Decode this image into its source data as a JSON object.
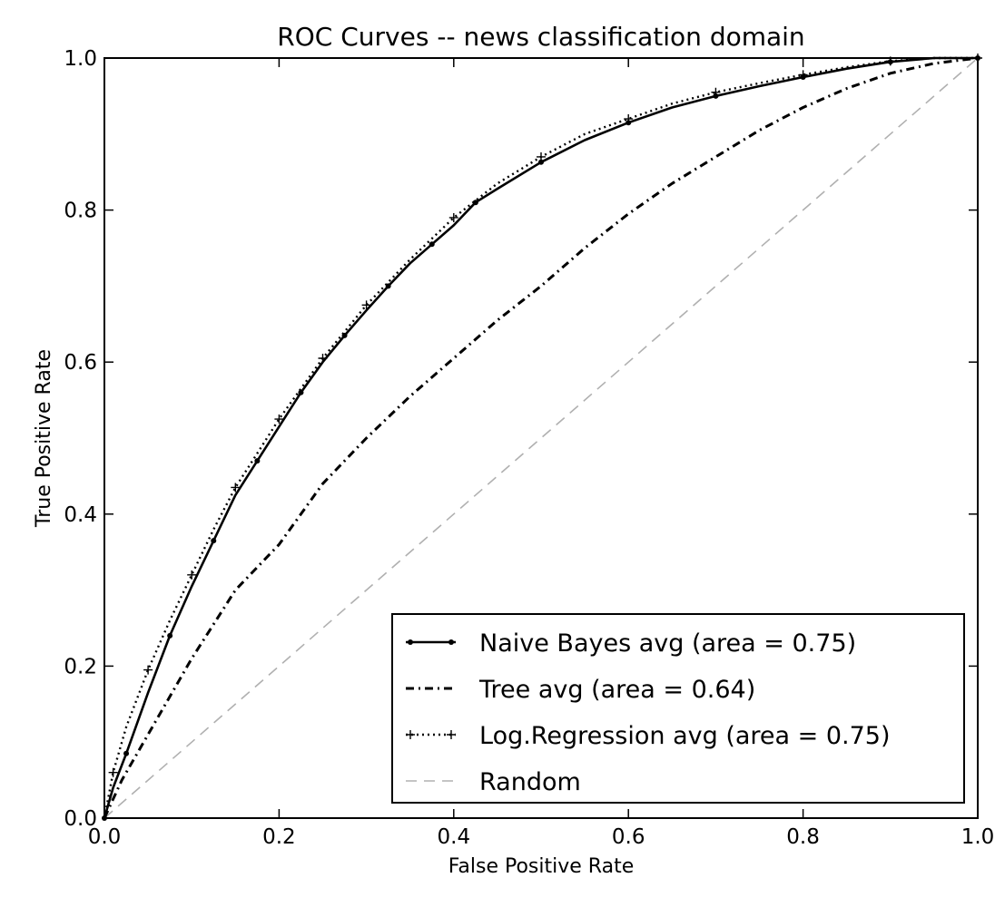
{
  "chart_data": {
    "type": "line",
    "title": "ROC Curves -- news classification domain",
    "xlabel": "False Positive Rate",
    "ylabel": "True Positive Rate",
    "xlim": [
      0.0,
      1.0
    ],
    "ylim": [
      0.0,
      1.0
    ],
    "x_ticks": [
      "0.0",
      "0.2",
      "0.4",
      "0.6",
      "0.8",
      "1.0"
    ],
    "y_ticks": [
      "0.0",
      "0.2",
      "0.4",
      "0.6",
      "0.8",
      "1.0"
    ],
    "grid": false,
    "legend_position": "lower-right",
    "series": [
      {
        "name": "Naive Bayes avg (area = 0.75)",
        "style": "solid-dot-markers",
        "color": "#000000",
        "x": [
          0,
          0.01,
          0.025,
          0.05,
          0.075,
          0.1,
          0.125,
          0.15,
          0.175,
          0.2,
          0.225,
          0.25,
          0.275,
          0.3,
          0.325,
          0.35,
          0.375,
          0.4,
          0.425,
          0.45,
          0.5,
          0.55,
          0.6,
          0.65,
          0.7,
          0.75,
          0.8,
          0.85,
          0.9,
          0.95,
          1.0
        ],
        "y": [
          0,
          0.04,
          0.085,
          0.165,
          0.24,
          0.305,
          0.365,
          0.425,
          0.47,
          0.515,
          0.56,
          0.6,
          0.635,
          0.668,
          0.7,
          0.73,
          0.755,
          0.78,
          0.81,
          0.828,
          0.863,
          0.892,
          0.915,
          0.935,
          0.95,
          0.963,
          0.975,
          0.986,
          0.995,
          1.0,
          1.0
        ]
      },
      {
        "name": "Tree avg (area = 0.64)",
        "style": "dash-dot",
        "color": "#000000",
        "x": [
          0,
          0.02,
          0.05,
          0.1,
          0.15,
          0.2,
          0.25,
          0.3,
          0.35,
          0.4,
          0.45,
          0.5,
          0.55,
          0.6,
          0.65,
          0.7,
          0.75,
          0.8,
          0.85,
          0.9,
          0.95,
          1.0
        ],
        "y": [
          0,
          0.05,
          0.11,
          0.21,
          0.3,
          0.36,
          0.44,
          0.5,
          0.555,
          0.605,
          0.655,
          0.7,
          0.75,
          0.795,
          0.835,
          0.87,
          0.905,
          0.935,
          0.96,
          0.98,
          0.993,
          1.0
        ]
      },
      {
        "name": "Log.Regression avg (area = 0.75)",
        "style": "dotted-plus-markers",
        "color": "#000000",
        "x": [
          0,
          0.01,
          0.025,
          0.05,
          0.075,
          0.1,
          0.125,
          0.15,
          0.175,
          0.2,
          0.225,
          0.25,
          0.275,
          0.3,
          0.35,
          0.4,
          0.45,
          0.5,
          0.55,
          0.6,
          0.65,
          0.7,
          0.75,
          0.8,
          0.85,
          0.9,
          0.95,
          1.0
        ],
        "y": [
          0,
          0.06,
          0.12,
          0.195,
          0.26,
          0.32,
          0.38,
          0.435,
          0.48,
          0.525,
          0.565,
          0.605,
          0.64,
          0.675,
          0.735,
          0.79,
          0.835,
          0.87,
          0.9,
          0.92,
          0.94,
          0.955,
          0.967,
          0.978,
          0.988,
          0.996,
          1.0,
          1.0
        ]
      },
      {
        "name": "Random",
        "style": "dashed",
        "color": "#b0b0b0",
        "x": [
          0,
          1
        ],
        "y": [
          0,
          1
        ]
      }
    ]
  }
}
